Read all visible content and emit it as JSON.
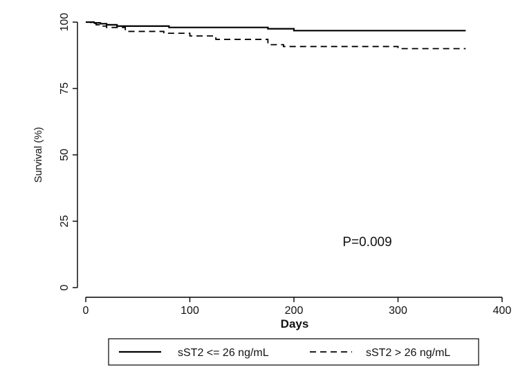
{
  "chart_data": {
    "type": "line",
    "step": true,
    "xlabel": "Days",
    "ylabel": "Survival (%)",
    "xlim": [
      0,
      400
    ],
    "ylim": [
      0,
      100
    ],
    "xticks": [
      "0",
      "100",
      "200",
      "300",
      "400"
    ],
    "yticks": [
      "0",
      "25",
      "50",
      "75",
      "100"
    ],
    "grid": false,
    "annotation": "P=0.009",
    "legend_position": "bottom",
    "series": [
      {
        "name": "sST2 <= 26 ng/mL",
        "line_style": "solid",
        "color": "#000000",
        "x": [
          0,
          8,
          14,
          20,
          30,
          80,
          175,
          200,
          365
        ],
        "y": [
          100,
          99.7,
          99.4,
          99.0,
          98.5,
          98.0,
          97.5,
          96.8,
          96.8
        ]
      },
      {
        "name": "sST2 > 26 ng/mL",
        "line_style": "dashed",
        "color": "#000000",
        "x": [
          0,
          5,
          10,
          15,
          20,
          38,
          75,
          100,
          125,
          175,
          190,
          300,
          365
        ],
        "y": [
          100,
          99.5,
          99.0,
          98.5,
          98.0,
          96.5,
          95.8,
          94.8,
          93.5,
          91.5,
          90.8,
          90.0,
          90.0
        ]
      }
    ]
  }
}
